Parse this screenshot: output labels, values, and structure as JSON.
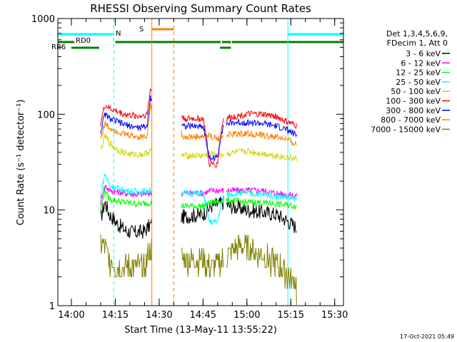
{
  "chart_data": {
    "type": "line",
    "title": "RHESSI Observing Summary Count Rates",
    "xlabel": "Start Time (13-May-11 13:55:22)",
    "ylabel": "Count Rate (s⁻¹ detector⁻¹)",
    "y_scale": "log",
    "ylim": [
      1,
      1000
    ],
    "xlim": [
      "13:55:22",
      "15:33:00"
    ],
    "x_ticks": [
      "14:00",
      "14:15",
      "14:30",
      "14:45",
      "15:00",
      "15:15",
      "15:30"
    ],
    "y_ticks": [
      "1",
      "10",
      "100",
      "1000"
    ],
    "legend": {
      "placement": "right",
      "header": [
        "Det 1,3,4,5,6,9,",
        "FDecim 1, Att 0"
      ]
    },
    "data_gaps": [
      [
        "14:27:30",
        "14:37:30"
      ],
      [
        "14:52:00",
        "14:53:00"
      ]
    ],
    "series": [
      {
        "name": "3 - 6 keV",
        "color": "#000000",
        "points": [
          [
            "14:10:00",
            8
          ],
          [
            "14:11:30",
            12
          ],
          [
            "14:13:00",
            9
          ],
          [
            "14:16:00",
            7
          ],
          [
            "14:19:00",
            6
          ],
          [
            "14:22:00",
            5.8
          ],
          [
            "14:25:00",
            6
          ],
          [
            "14:27:00",
            7
          ],
          [
            "14:38:30",
            8.5
          ],
          [
            "14:45:00",
            9
          ],
          [
            "14:48:00",
            11
          ],
          [
            "14:52:00",
            12
          ],
          [
            "14:54:00",
            11
          ],
          [
            "15:00:00",
            10
          ],
          [
            "15:05:00",
            9.5
          ],
          [
            "15:10:00",
            9
          ],
          [
            "15:13:00",
            8
          ],
          [
            "15:17:00",
            6.5
          ]
        ]
      },
      {
        "name": "6 - 12 keV",
        "color": "#ff00ff",
        "points": [
          [
            "14:10:00",
            12
          ],
          [
            "14:11:30",
            18
          ],
          [
            "14:13:00",
            16
          ],
          [
            "14:18:00",
            15
          ],
          [
            "14:23:00",
            14.5
          ],
          [
            "14:27:00",
            15
          ],
          [
            "14:38:30",
            15
          ],
          [
            "14:45:00",
            15
          ],
          [
            "14:48:00",
            16
          ],
          [
            "14:52:00",
            16
          ],
          [
            "14:56:00",
            16
          ],
          [
            "15:00:00",
            16
          ],
          [
            "15:05:00",
            16
          ],
          [
            "15:10:00",
            15
          ],
          [
            "15:17:00",
            14
          ]
        ]
      },
      {
        "name": "12 - 25 keV",
        "color": "#00ff00",
        "points": [
          [
            "14:10:00",
            10
          ],
          [
            "14:11:30",
            16
          ],
          [
            "14:13:00",
            13
          ],
          [
            "14:18:00",
            12
          ],
          [
            "14:23:00",
            11.5
          ],
          [
            "14:27:00",
            12
          ],
          [
            "14:38:30",
            11
          ],
          [
            "14:45:00",
            11
          ],
          [
            "14:48:00",
            12
          ],
          [
            "14:52:00",
            12.5
          ],
          [
            "14:56:00",
            12.5
          ],
          [
            "15:00:00",
            12
          ],
          [
            "15:05:00",
            12
          ],
          [
            "15:10:00",
            11.5
          ],
          [
            "15:17:00",
            11
          ]
        ]
      },
      {
        "name": "25 - 50 keV",
        "color": "#00ffff",
        "points": [
          [
            "14:10:00",
            13
          ],
          [
            "14:11:30",
            24
          ],
          [
            "14:13:00",
            18
          ],
          [
            "14:18:00",
            16
          ],
          [
            "14:23:00",
            15.5
          ],
          [
            "14:27:00",
            16
          ],
          [
            "14:38:30",
            15
          ],
          [
            "14:45:00",
            15
          ],
          [
            "14:47:00",
            7.5
          ],
          [
            "14:50:00",
            7.5
          ],
          [
            "14:52:00",
            14
          ],
          [
            "14:56:00",
            15
          ],
          [
            "15:00:00",
            15
          ],
          [
            "15:05:00",
            14.5
          ],
          [
            "15:10:00",
            14
          ],
          [
            "15:17:00",
            13
          ]
        ]
      },
      {
        "name": "50 - 100 keV",
        "color": "#d4d400",
        "points": [
          [
            "14:10:00",
            40
          ],
          [
            "14:11:30",
            60
          ],
          [
            "14:13:00",
            50
          ],
          [
            "14:16:00",
            42
          ],
          [
            "14:20:00",
            38
          ],
          [
            "14:25:00",
            38
          ],
          [
            "14:27:00",
            42
          ],
          [
            "14:38:30",
            37
          ],
          [
            "14:45:00",
            37
          ],
          [
            "14:48:00",
            38
          ],
          [
            "14:52:00",
            38
          ],
          [
            "14:56:00",
            40
          ],
          [
            "15:00:00",
            41
          ],
          [
            "15:05:00",
            39
          ],
          [
            "15:10:00",
            37
          ],
          [
            "15:17:00",
            34
          ]
        ]
      },
      {
        "name": "100 - 300 keV",
        "color": "#ff0000",
        "points": [
          [
            "14:10:00",
            80
          ],
          [
            "14:11:30",
            125
          ],
          [
            "14:13:00",
            115
          ],
          [
            "14:18:00",
            100
          ],
          [
            "14:23:00",
            95
          ],
          [
            "14:26:00",
            100
          ],
          [
            "14:27:00",
            180
          ],
          [
            "14:38:30",
            90
          ],
          [
            "14:45:00",
            90
          ],
          [
            "14:47:00",
            30
          ],
          [
            "14:50:00",
            30
          ],
          [
            "14:52:00",
            90
          ],
          [
            "14:56:00",
            95
          ],
          [
            "15:00:00",
            100
          ],
          [
            "15:05:00",
            100
          ],
          [
            "15:10:00",
            95
          ],
          [
            "15:13:00",
            85
          ],
          [
            "15:17:00",
            75
          ]
        ]
      },
      {
        "name": "300 - 800 keV",
        "color": "#0000ff",
        "points": [
          [
            "14:10:00",
            65
          ],
          [
            "14:11:30",
            100
          ],
          [
            "14:13:00",
            90
          ],
          [
            "14:18:00",
            78
          ],
          [
            "14:23:00",
            72
          ],
          [
            "14:26:00",
            75
          ],
          [
            "14:27:00",
            150
          ],
          [
            "14:38:30",
            75
          ],
          [
            "14:45:00",
            75
          ],
          [
            "14:47:00",
            35
          ],
          [
            "14:50:00",
            35
          ],
          [
            "14:52:00",
            78
          ],
          [
            "14:56:00",
            82
          ],
          [
            "15:00:00",
            82
          ],
          [
            "15:05:00",
            80
          ],
          [
            "15:10:00",
            75
          ],
          [
            "15:13:00",
            70
          ],
          [
            "15:17:00",
            60
          ]
        ]
      },
      {
        "name": "800 - 7000 keV",
        "color": "#ff7f00",
        "points": [
          [
            "14:10:00",
            55
          ],
          [
            "14:11:30",
            80
          ],
          [
            "14:13:00",
            72
          ],
          [
            "14:18:00",
            62
          ],
          [
            "14:23:00",
            58
          ],
          [
            "14:26:00",
            60
          ],
          [
            "14:27:00",
            120
          ],
          [
            "14:38:30",
            58
          ],
          [
            "14:45:00",
            58
          ],
          [
            "14:47:00",
            60
          ],
          [
            "14:50:00",
            55
          ],
          [
            "14:52:00",
            60
          ],
          [
            "14:56:00",
            62
          ],
          [
            "15:00:00",
            63
          ],
          [
            "15:05:00",
            60
          ],
          [
            "15:10:00",
            58
          ],
          [
            "15:13:00",
            55
          ],
          [
            "15:17:00",
            48
          ]
        ]
      },
      {
        "name": "7000 - 15000 keV",
        "color": "#808000",
        "points": [
          [
            "14:10:00",
            4.5
          ],
          [
            "14:11:30",
            4
          ],
          [
            "14:13:00",
            3
          ],
          [
            "14:16:00",
            2.5
          ],
          [
            "14:20:00",
            2.5
          ],
          [
            "14:25:00",
            2.5
          ],
          [
            "14:27:00",
            4
          ],
          [
            "14:38:30",
            3
          ],
          [
            "14:45:00",
            3
          ],
          [
            "14:48:00",
            2.5
          ],
          [
            "14:52:00",
            3
          ],
          [
            "14:56:00",
            4
          ],
          [
            "15:00:00",
            4
          ],
          [
            "15:04:00",
            3.5
          ],
          [
            "15:08:00",
            3
          ],
          [
            "15:12:00",
            2.5
          ],
          [
            "15:17:00",
            1.5
          ]
        ]
      }
    ],
    "state_bars": [
      {
        "label": "N",
        "color": "#00ffff",
        "row": 1,
        "segments": [
          [
            "13:55:22",
            "14:14:30"
          ],
          [
            "15:14:00",
            "15:33:00"
          ]
        ]
      },
      {
        "label": "S",
        "color": "#ff7f00",
        "row": 2,
        "segments": [
          [
            "14:27:30",
            "14:35:00"
          ]
        ]
      },
      {
        "label": "RD0",
        "color": "#008000",
        "row": 3,
        "segments": [
          [
            "13:55:22",
            "14:01:00"
          ],
          [
            "14:15:00",
            "14:51:00"
          ],
          [
            "14:51:30",
            "14:54:30"
          ],
          [
            "14:54:50",
            "15:33:00"
          ]
        ]
      },
      {
        "label": "RB6",
        "color": "#008000",
        "row": 4,
        "segments": [
          [
            "14:00:00",
            "14:09:30"
          ],
          [
            "14:50:50",
            "14:54:30"
          ]
        ]
      }
    ],
    "markers": [
      {
        "time": "13:55:22",
        "color": "#00ffff",
        "style": "solid"
      },
      {
        "time": "14:14:30",
        "color": "#00ffff",
        "style": "dashed"
      },
      {
        "time": "14:27:30",
        "color": "#ff7f00",
        "style": "solid"
      },
      {
        "time": "14:35:00",
        "color": "#ff7f00",
        "style": "dashed"
      },
      {
        "time": "15:14:00",
        "color": "#00ffff",
        "style": "solid"
      },
      {
        "time": "15:33:00",
        "color": "#00ffff",
        "style": "dashed"
      }
    ],
    "footer_timestamp": "17-Oct-2021 05:49"
  }
}
